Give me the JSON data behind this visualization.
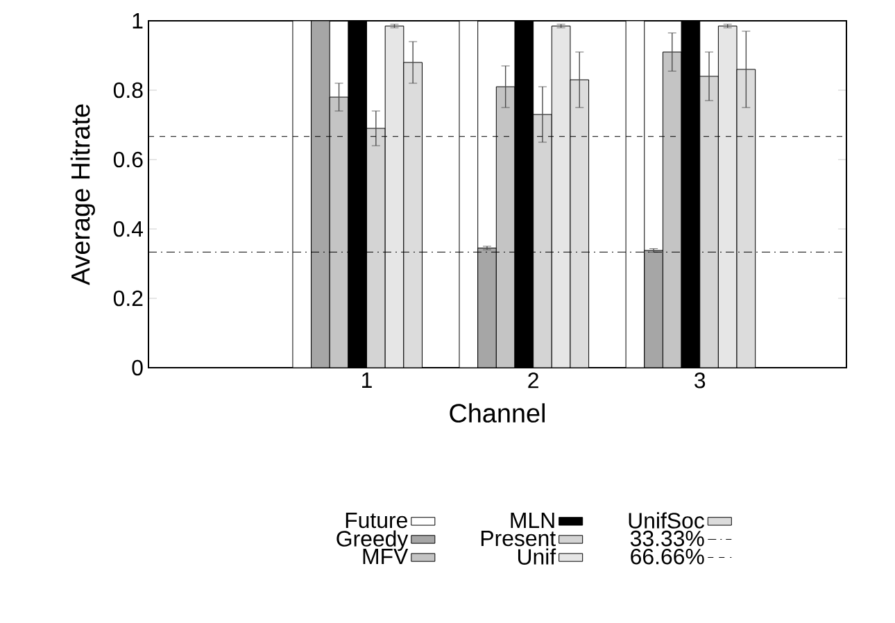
{
  "chart_data": {
    "type": "bar",
    "xlabel": "Channel",
    "ylabel": "Average Hitrate",
    "categories": [
      "1",
      "2",
      "3"
    ],
    "series": [
      {
        "name": "Future",
        "color": "#ffffff",
        "values": [
          1,
          1,
          1
        ]
      },
      {
        "name": "Greedy",
        "color": "#a6a6a6",
        "values": [
          1,
          0.345,
          0.338
        ],
        "errors": [
          null,
          0.005,
          0.005
        ]
      },
      {
        "name": "MFV",
        "color": "#c4c4c4",
        "values": [
          0.78,
          0.81,
          0.91
        ],
        "errors": [
          0.04,
          0.06,
          0.055
        ]
      },
      {
        "name": "MLN",
        "color": "#000000",
        "values": [
          1,
          1,
          1
        ]
      },
      {
        "name": "Present",
        "color": "#d4d4d4",
        "values": [
          0.69,
          0.73,
          0.84
        ],
        "errors": [
          0.05,
          0.08,
          0.07
        ]
      },
      {
        "name": "Unif",
        "color": "#e6e6e6",
        "values": [
          0.985,
          0.985,
          0.985
        ],
        "errors": [
          0.005,
          0.005,
          0.005
        ]
      },
      {
        "name": "UnifSoc",
        "color": "#dcdcdc",
        "values": [
          0.88,
          0.83,
          0.86
        ],
        "errors": [
          0.06,
          0.08,
          0.11
        ]
      }
    ],
    "ref_lines": [
      {
        "axis": "y",
        "value": 0.3333,
        "label": "33.33%",
        "line_style": "dashdot",
        "color": "#000000"
      },
      {
        "axis": "y",
        "value": 0.6666,
        "label": "66.66%",
        "line_style": "dashed",
        "color": "#000000"
      }
    ],
    "ylim": [
      0,
      1
    ],
    "yticks": [
      0,
      0.2,
      0.4,
      0.6,
      0.8,
      1
    ],
    "grid": false,
    "legend": "bottom"
  }
}
